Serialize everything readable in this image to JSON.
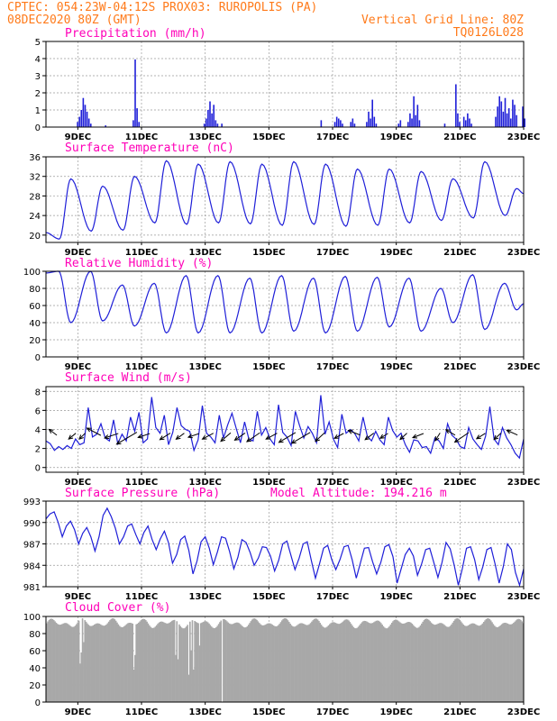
{
  "header": {
    "line1_left": "CPTEC:   054:23W-04:12S   PROX03: RUROPOLIS (PA)",
    "line2_left": "08DEC2020 80Z (GMT)",
    "line2_right": "Vertical Grid Line: 80Z",
    "line3_right": "TQ0126L028"
  },
  "colors": {
    "header": "#ff7a1a",
    "panel_title": "#ff00b8",
    "series": "#1f1fd8",
    "cloud": "#a8a8a8",
    "arrow": "#000000"
  },
  "chart_data": [
    {
      "type": "bar",
      "title": "Precipitation (mm/h)",
      "x_tick_labels": [
        "9DEC",
        "11DEC",
        "13DEC",
        "15DEC",
        "17DEC",
        "19DEC",
        "21DEC",
        "23DEC"
      ],
      "y_tick_labels": [
        "0",
        "1",
        "2",
        "3",
        "4",
        "5"
      ],
      "ylim": [
        0,
        5
      ],
      "x_range_days": [
        8.0,
        23.0
      ],
      "grid": true,
      "events": [
        {
          "day": 8.97,
          "values": [
            0.3,
            0.6,
            1.0,
            1.7,
            1.3,
            0.9,
            0.5,
            0.2
          ]
        },
        {
          "day": 9.85,
          "values": [
            0.1
          ]
        },
        {
          "day": 10.72,
          "values": [
            0.4,
            3.95,
            1.1,
            0.3
          ]
        },
        {
          "day": 12.95,
          "values": [
            0.2,
            0.5,
            1.0,
            1.5,
            0.8,
            1.3,
            0.4,
            0.2
          ]
        },
        {
          "day": 13.5,
          "values": [
            0.2
          ]
        },
        {
          "day": 16.62,
          "values": [
            0.4
          ]
        },
        {
          "day": 17.05,
          "values": [
            0.3,
            0.6,
            0.5,
            0.4,
            0.2
          ]
        },
        {
          "day": 17.55,
          "values": [
            0.3,
            0.5,
            0.2
          ]
        },
        {
          "day": 18.05,
          "values": [
            0.3,
            0.9,
            0.5,
            1.6,
            0.6,
            0.2
          ]
        },
        {
          "day": 19.05,
          "values": [
            0.2,
            0.4
          ]
        },
        {
          "day": 19.35,
          "values": [
            0.3,
            0.8,
            0.5,
            1.8,
            0.7,
            1.3,
            0.4
          ]
        },
        {
          "day": 20.5,
          "values": [
            0.2
          ]
        },
        {
          "day": 20.85,
          "values": [
            2.5,
            0.8,
            0.3
          ]
        },
        {
          "day": 21.1,
          "values": [
            0.6,
            0.4,
            0.8,
            0.5,
            0.2
          ]
        },
        {
          "day": 22.1,
          "values": [
            0.6,
            1.2,
            1.8,
            1.5,
            0.9,
            1.7,
            0.8,
            1.1,
            0.5,
            1.6,
            1.3,
            0.7
          ]
        },
        {
          "day": 22.95,
          "values": [
            1.2,
            0.5
          ]
        }
      ]
    },
    {
      "type": "line",
      "title": "Surface Temperature (nC)",
      "x_tick_labels": [
        "9DEC",
        "11DEC",
        "13DEC",
        "15DEC",
        "17DEC",
        "19DEC",
        "21DEC",
        "23DEC"
      ],
      "y_tick_labels": [
        "20",
        "24",
        "28",
        "32",
        "36"
      ],
      "ylim": [
        18.5,
        36
      ],
      "daily_min_day_offset": 0.42,
      "daily_max_day_offset": 0.78,
      "start_value": 20.5,
      "daily_min": [
        19.2,
        20.8,
        21.0,
        22.5,
        22.2,
        22.5,
        22.3,
        22.0,
        22.2,
        21.8,
        22.0,
        22.5,
        23.0,
        23.5,
        24.0
      ],
      "daily_max": [
        31.5,
        30.0,
        32.0,
        35.2,
        34.5,
        35.0,
        34.5,
        35.0,
        34.5,
        33.5,
        33.5,
        33.0,
        31.5,
        35.0,
        29.5
      ],
      "end_value": 28.5
    },
    {
      "type": "line",
      "title": "Relative Humidity (%)",
      "x_tick_labels": [
        "9DEC",
        "11DEC",
        "13DEC",
        "15DEC",
        "17DEC",
        "19DEC",
        "21DEC",
        "23DEC"
      ],
      "y_tick_labels": [
        "0",
        "20",
        "40",
        "60",
        "80",
        "100"
      ],
      "ylim": [
        0,
        100
      ],
      "daily_min_day_offset": 0.78,
      "daily_max_day_offset": 0.4,
      "start_value": 98,
      "daily_max": [
        100,
        100,
        84,
        86,
        95,
        95,
        92,
        95,
        92,
        94,
        93,
        92,
        80,
        96,
        86
      ],
      "daily_min": [
        40,
        42,
        36,
        28,
        28,
        28,
        28,
        30,
        28,
        30,
        35,
        30,
        40,
        32,
        55
      ],
      "end_value": 62
    },
    {
      "type": "line",
      "title": "Surface Wind (m/s)",
      "x_tick_labels": [
        "9DEC",
        "11DEC",
        "13DEC",
        "15DEC",
        "17DEC",
        "19DEC",
        "21DEC",
        "23DEC"
      ],
      "y_tick_labels": [
        "0",
        "2",
        "4",
        "6",
        "8"
      ],
      "ylim": [
        -0.5,
        8.5
      ],
      "values": [
        2.8,
        2.5,
        1.8,
        2.2,
        1.9,
        2.3,
        2.0,
        3.0,
        2.4,
        2.6,
        6.3,
        3.2,
        3.5,
        4.6,
        3.1,
        2.8,
        5.0,
        2.5,
        3.5,
        2.8,
        5.3,
        3.8,
        5.8,
        2.6,
        3.0,
        7.4,
        4.2,
        3.6,
        5.5,
        2.4,
        3.7,
        6.3,
        4.4,
        4.0,
        3.8,
        1.8,
        2.9,
        6.5,
        3.6,
        3.2,
        2.6,
        5.5,
        3.1,
        4.5,
        5.7,
        4.1,
        2.6,
        4.8,
        3.0,
        2.8,
        5.9,
        3.4,
        4.2,
        3.0,
        2.4,
        6.6,
        3.7,
        3.2,
        2.3,
        5.9,
        4.4,
        3.1,
        4.3,
        3.6,
        2.6,
        7.6,
        3.5,
        4.8,
        3.0,
        2.1,
        5.6,
        3.6,
        4.0,
        3.6,
        2.8,
        5.3,
        3.3,
        2.8,
        3.8,
        2.9,
        2.4,
        5.3,
        3.9,
        3.2,
        3.6,
        2.4,
        1.6,
        2.9,
        2.8,
        2.1,
        2.2,
        1.5,
        3.1,
        2.8,
        2.0,
        4.6,
        3.4,
        3.0,
        2.2,
        2.0,
        4.2,
        3.0,
        2.4,
        1.9,
        3.3,
        6.4,
        3.0,
        2.4,
        4.2,
        3.1,
        2.4,
        1.5,
        1.0,
        3.0
      ],
      "arrows": [
        {
          "day": 8.3,
          "length": 9,
          "dx": -0.8,
          "dy": -0.6
        },
        {
          "day": 8.9,
          "length": 12,
          "dx": -0.55,
          "dy": 0.45
        },
        {
          "day": 9.2,
          "length": 9,
          "dx": -0.6,
          "dy": 0.6
        },
        {
          "day": 9.65,
          "length": 15,
          "dx": -0.85,
          "dy": -0.45
        },
        {
          "day": 10.2,
          "length": 14,
          "dx": -0.9,
          "dy": 0.3
        },
        {
          "day": 10.75,
          "length": 22,
          "dx": -0.85,
          "dy": 0.5
        },
        {
          "day": 11.2,
          "length": 12,
          "dx": -0.9,
          "dy": 0.3
        },
        {
          "day": 11.85,
          "length": 12,
          "dx": -0.8,
          "dy": 0.5
        },
        {
          "day": 12.3,
          "length": 10,
          "dx": -0.75,
          "dy": 0.55
        },
        {
          "day": 12.75,
          "length": 11,
          "dx": -0.9,
          "dy": 0.3
        },
        {
          "day": 13.2,
          "length": 12,
          "dx": -0.85,
          "dy": 0.45
        },
        {
          "day": 13.75,
          "length": 13,
          "dx": -0.7,
          "dy": 0.6
        },
        {
          "day": 14.2,
          "length": 12,
          "dx": -0.8,
          "dy": 0.55
        },
        {
          "day": 14.65,
          "length": 15,
          "dx": -0.8,
          "dy": 0.55
        },
        {
          "day": 15.2,
          "length": 12,
          "dx": -0.85,
          "dy": 0.45
        },
        {
          "day": 15.75,
          "length": 18,
          "dx": -0.85,
          "dy": 0.5
        },
        {
          "day": 16.2,
          "length": 20,
          "dx": -0.85,
          "dy": 0.5
        },
        {
          "day": 16.7,
          "length": 12,
          "dx": -0.7,
          "dy": 0.65
        },
        {
          "day": 17.3,
          "length": 10,
          "dx": -0.85,
          "dy": 0.45
        },
        {
          "day": 17.8,
          "length": 12,
          "dx": -0.9,
          "dy": -0.35
        },
        {
          "day": 18.25,
          "length": 10,
          "dx": -0.8,
          "dy": 0.6
        },
        {
          "day": 18.7,
          "length": 9,
          "dx": -0.8,
          "dy": 0.5
        },
        {
          "day": 19.3,
          "length": 9,
          "dx": -0.7,
          "dy": 0.65
        },
        {
          "day": 19.8,
          "length": 11,
          "dx": -0.9,
          "dy": 0.35
        },
        {
          "day": 20.35,
          "length": 9,
          "dx": -0.5,
          "dy": 0.8
        },
        {
          "day": 20.8,
          "length": 10,
          "dx": -0.85,
          "dy": -0.5
        },
        {
          "day": 21.2,
          "length": 16,
          "dx": -0.8,
          "dy": 0.55
        },
        {
          "day": 21.75,
          "length": 10,
          "dx": -0.8,
          "dy": 0.5
        },
        {
          "day": 22.25,
          "length": 9,
          "dx": -0.7,
          "dy": 0.65
        },
        {
          "day": 22.75,
          "length": 11,
          "dx": -0.9,
          "dy": -0.4
        }
      ]
    },
    {
      "type": "line",
      "title": "Surface Pressure (hPa)",
      "subtitle": "Model Altitude: 194.216 m",
      "x_tick_labels": [
        "9DEC",
        "11DEC",
        "13DEC",
        "15DEC",
        "17DEC",
        "19DEC",
        "21DEC",
        "23DEC"
      ],
      "y_tick_labels": [
        "981",
        "984",
        "987",
        "990",
        "993"
      ],
      "ylim": [
        981,
        993
      ],
      "values": [
        990.5,
        991.2,
        991.5,
        990.0,
        988.0,
        989.5,
        990.2,
        989.0,
        987.0,
        988.5,
        989.3,
        988.0,
        986.0,
        988.0,
        991.0,
        992.0,
        990.8,
        989.2,
        987.0,
        988.0,
        989.5,
        989.8,
        988.3,
        987.0,
        988.6,
        989.5,
        987.6,
        986.2,
        987.7,
        988.8,
        987.2,
        984.3,
        985.5,
        987.6,
        988.1,
        986.1,
        982.8,
        984.6,
        987.3,
        988.0,
        986.4,
        984.1,
        985.9,
        988.0,
        987.8,
        985.9,
        983.5,
        985.1,
        987.6,
        987.2,
        985.8,
        984.0,
        985.0,
        986.6,
        986.5,
        985.3,
        983.2,
        984.7,
        987.0,
        987.4,
        985.4,
        983.4,
        985.0,
        987.0,
        987.3,
        984.7,
        982.2,
        984.2,
        986.4,
        986.8,
        984.8,
        983.4,
        984.8,
        986.6,
        986.8,
        984.8,
        982.2,
        984.3,
        986.4,
        986.5,
        984.5,
        982.8,
        984.4,
        986.6,
        986.9,
        985.2,
        981.5,
        983.5,
        985.5,
        986.4,
        985.3,
        982.6,
        984.2,
        986.2,
        986.4,
        984.4,
        982.3,
        984.4,
        987.2,
        986.3,
        984.0,
        981.2,
        983.6,
        986.4,
        986.6,
        984.8,
        982.0,
        983.8,
        986.2,
        986.5,
        984.2,
        981.5,
        983.8,
        987.0,
        986.2,
        983.0,
        981.2,
        983.5
      ]
    },
    {
      "type": "area",
      "title": "Cloud Cover (%)",
      "x_tick_labels": [
        "9DEC",
        "11DEC",
        "13DEC",
        "15DEC",
        "17DEC",
        "19DEC",
        "21DEC",
        "23DEC"
      ],
      "y_tick_labels": [
        "0",
        "20",
        "40",
        "60",
        "80",
        "100"
      ],
      "ylim": [
        0,
        100
      ],
      "base_level": 92,
      "gaps": [
        {
          "day": 9.05,
          "value": 45
        },
        {
          "day": 9.1,
          "value": 58
        },
        {
          "day": 9.18,
          "value": 70
        },
        {
          "day": 10.72,
          "value": 38
        },
        {
          "day": 10.78,
          "value": 55
        },
        {
          "day": 12.05,
          "value": 55
        },
        {
          "day": 12.12,
          "value": 50
        },
        {
          "day": 12.48,
          "value": 32
        },
        {
          "day": 12.53,
          "value": 60
        },
        {
          "day": 12.62,
          "value": 38
        },
        {
          "day": 12.8,
          "value": 66
        },
        {
          "day": 13.5,
          "value": 0
        }
      ]
    }
  ]
}
